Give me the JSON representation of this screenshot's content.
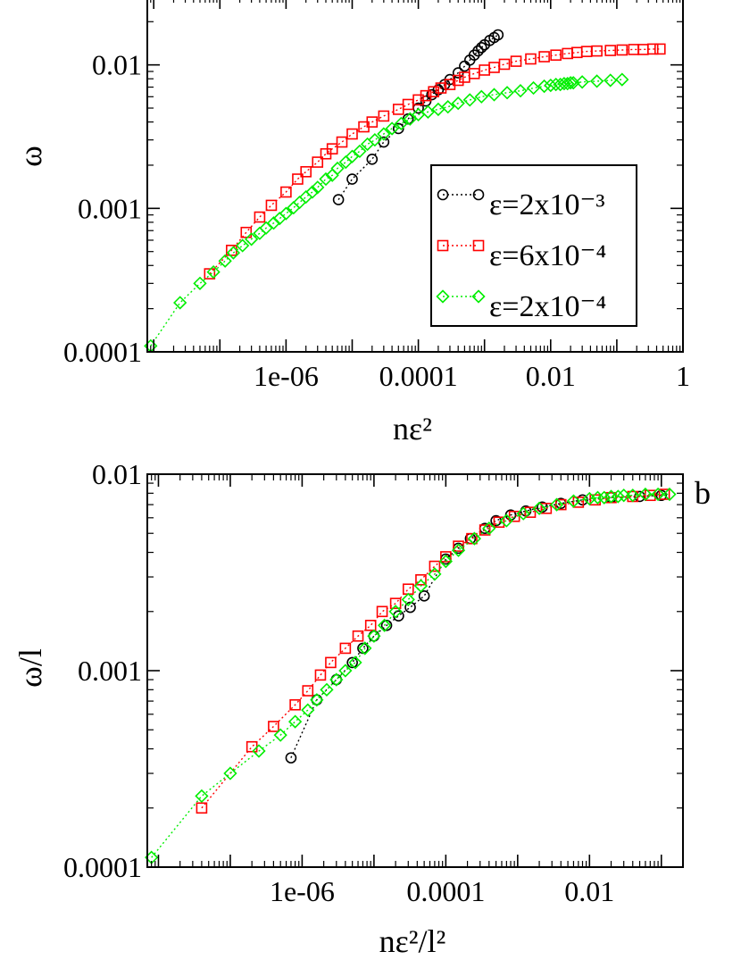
{
  "colors": {
    "black_series": "#000000",
    "red_series": "#ff0000",
    "green_series": "#00ee00",
    "axis": "#000000",
    "background": "#ffffff"
  },
  "chart_data": [
    {
      "type": "scatter",
      "panel_label": "",
      "xlabel": "nε²",
      "ylabel": "ω",
      "x_scale": "log",
      "y_scale": "log",
      "xlim": [
        8e-09,
        1.0
      ],
      "ylim": [
        0.0001,
        0.03
      ],
      "x_tick_labels": [
        "1e-06",
        "0.0001",
        "0.01",
        "1"
      ],
      "y_tick_labels": [
        "0.0001",
        "0.001",
        "0.01"
      ],
      "grid": false,
      "legend_position": "right",
      "series": [
        {
          "name": "ε=2x10⁻³",
          "marker": "circle",
          "color": "black",
          "x": [
            6.2e-06,
            1e-05,
            2e-05,
            3e-05,
            5e-05,
            7e-05,
            0.0001,
            0.00013,
            0.00016,
            0.0002,
            0.00025,
            0.0003,
            0.0004,
            0.0005,
            0.0006,
            0.0007,
            0.0008,
            0.0009,
            0.001,
            0.0012,
            0.0014,
            0.0016
          ],
          "y": [
            0.00115,
            0.0016,
            0.0022,
            0.0029,
            0.0036,
            0.0042,
            0.005,
            0.0056,
            0.0062,
            0.0067,
            0.0073,
            0.0079,
            0.0088,
            0.0098,
            0.0108,
            0.0117,
            0.0125,
            0.0132,
            0.0138,
            0.0148,
            0.0155,
            0.0162
          ]
        },
        {
          "name": "ε=6x10⁻⁴",
          "marker": "square",
          "color": "red",
          "x": [
            7e-08,
            1.5e-07,
            2.5e-07,
            4e-07,
            6e-07,
            1e-06,
            1.5e-06,
            2e-06,
            3e-06,
            4e-06,
            5e-06,
            7e-06,
            1e-05,
            1.5e-05,
            2e-05,
            3e-05,
            5e-05,
            7e-05,
            0.0001,
            0.00013,
            0.00017,
            0.00022,
            0.0003,
            0.0004,
            0.0005,
            0.0007,
            0.001,
            0.0014,
            0.002,
            0.003,
            0.005,
            0.008,
            0.012,
            0.018,
            0.025,
            0.035,
            0.05,
            0.08,
            0.12,
            0.18,
            0.25,
            0.35,
            0.45
          ],
          "y": [
            0.00035,
            0.00051,
            0.00068,
            0.00087,
            0.00105,
            0.0013,
            0.0016,
            0.0018,
            0.0021,
            0.0024,
            0.0026,
            0.0029,
            0.0033,
            0.0037,
            0.004,
            0.0044,
            0.0049,
            0.0053,
            0.0057,
            0.0061,
            0.0065,
            0.0069,
            0.0073,
            0.0078,
            0.0082,
            0.0087,
            0.0092,
            0.0096,
            0.0101,
            0.0106,
            0.011,
            0.0114,
            0.0117,
            0.012,
            0.0122,
            0.0124,
            0.0125,
            0.0126,
            0.0127,
            0.0128,
            0.0128,
            0.0129,
            0.0129
          ]
        },
        {
          "name": "ε=2x10⁻⁴",
          "marker": "diamond",
          "color": "green",
          "x": [
            9e-09,
            2.5e-08,
            5e-08,
            8e-08,
            1.2e-07,
            1.6e-07,
            2.2e-07,
            3e-07,
            4e-07,
            5e-07,
            6.5e-07,
            8e-07,
            1e-06,
            1.3e-06,
            1.6e-06,
            2e-06,
            2.5e-06,
            3e-06,
            4e-06,
            5e-06,
            6e-06,
            8e-06,
            1e-05,
            1.3e-05,
            1.7e-05,
            2.2e-05,
            3e-05,
            4e-05,
            5.5e-05,
            7.5e-05,
            0.0001,
            0.00014,
            0.0002,
            0.00028,
            0.0004,
            0.0006,
            0.0009,
            0.0014,
            0.0022,
            0.0035,
            0.0055,
            0.008,
            0.01,
            0.012,
            0.014,
            0.016,
            0.018,
            0.02,
            0.022,
            0.03,
            0.05,
            0.08,
            0.12
          ],
          "y": [
            0.00011,
            0.00022,
            0.0003,
            0.00036,
            0.00043,
            0.00049,
            0.00055,
            0.00061,
            0.00067,
            0.00073,
            0.00079,
            0.00085,
            0.00092,
            0.00101,
            0.0011,
            0.0012,
            0.0013,
            0.0014,
            0.0016,
            0.0017,
            0.0019,
            0.0021,
            0.0023,
            0.0025,
            0.0028,
            0.003,
            0.0033,
            0.0036,
            0.0039,
            0.0042,
            0.0045,
            0.0047,
            0.0049,
            0.0051,
            0.0054,
            0.0057,
            0.006,
            0.0062,
            0.0064,
            0.0066,
            0.0069,
            0.0071,
            0.0072,
            0.0073,
            0.0073,
            0.0074,
            0.0074,
            0.0075,
            0.0075,
            0.0076,
            0.0077,
            0.0078,
            0.0079
          ]
        }
      ]
    },
    {
      "type": "scatter",
      "panel_label": "b",
      "xlabel": "nε²/l²",
      "ylabel": "ω/l",
      "x_scale": "log",
      "y_scale": "log",
      "xlim": [
        7e-09,
        0.2
      ],
      "ylim": [
        0.0001,
        0.01
      ],
      "x_tick_labels": [
        "1e-06",
        "0.0001",
        "0.01"
      ],
      "y_tick_labels": [
        "0.0001",
        "0.001",
        "0.01"
      ],
      "grid": false,
      "legend_position": "none",
      "series": [
        {
          "name": "",
          "marker": "circle",
          "color": "black",
          "x": [
            7e-07,
            1.6e-06,
            3e-06,
            5e-06,
            7e-06,
            1e-05,
            1.5e-05,
            2.2e-05,
            3.2e-05,
            5e-05,
            0.0001,
            0.00015,
            0.00022,
            0.00035,
            0.0005,
            0.0008,
            0.0013,
            0.0022,
            0.004,
            0.008,
            0.02,
            0.05,
            0.1
          ],
          "y": [
            0.00036,
            0.00071,
            0.0009,
            0.0011,
            0.0013,
            0.0015,
            0.0017,
            0.0019,
            0.0021,
            0.0024,
            0.0037,
            0.0042,
            0.0047,
            0.0053,
            0.0058,
            0.0062,
            0.0065,
            0.0068,
            0.0071,
            0.0074,
            0.0076,
            0.0077,
            0.0078
          ]
        },
        {
          "name": "",
          "marker": "square",
          "color": "red",
          "x": [
            4e-08,
            2e-07,
            4e-07,
            8e-07,
            1.2e-06,
            1.8e-06,
            2.5e-06,
            4e-06,
            6e-06,
            9e-06,
            1.3e-05,
            2e-05,
            3e-05,
            4.5e-05,
            7e-05,
            0.0001,
            0.00015,
            0.00023,
            0.00035,
            0.00055,
            0.0009,
            0.0015,
            0.0025,
            0.004,
            0.007,
            0.012,
            0.02,
            0.04,
            0.07,
            0.11
          ],
          "y": [
            0.0002,
            0.00041,
            0.00052,
            0.00067,
            0.00079,
            0.00095,
            0.0011,
            0.0013,
            0.0015,
            0.0017,
            0.002,
            0.0022,
            0.0026,
            0.0029,
            0.0034,
            0.0038,
            0.0043,
            0.0047,
            0.0052,
            0.0057,
            0.0061,
            0.0064,
            0.0067,
            0.007,
            0.0072,
            0.0074,
            0.0076,
            0.0077,
            0.0078,
            0.0079
          ]
        },
        {
          "name": "",
          "marker": "diamond",
          "color": "green",
          "x": [
            8e-09,
            4e-08,
            1e-07,
            2.5e-07,
            5e-07,
            8e-07,
            1.2e-06,
            1.6e-06,
            2.2e-06,
            3e-06,
            4e-06,
            5.5e-06,
            7.5e-06,
            1e-05,
            1.4e-05,
            2e-05,
            3e-05,
            4.5e-05,
            7e-05,
            0.0001,
            0.00015,
            0.00025,
            0.0004,
            0.0007,
            0.0012,
            0.002,
            0.0035,
            0.006,
            0.01,
            0.013,
            0.016,
            0.02,
            0.025,
            0.03,
            0.04,
            0.06,
            0.09,
            0.13
          ],
          "y": [
            0.000112,
            0.00023,
            0.0003,
            0.00039,
            0.00047,
            0.00055,
            0.00063,
            0.00071,
            0.0008,
            0.0009,
            0.001,
            0.0011,
            0.0013,
            0.0015,
            0.0017,
            0.002,
            0.0023,
            0.0027,
            0.0031,
            0.0036,
            0.0041,
            0.0047,
            0.0053,
            0.0058,
            0.0063,
            0.0067,
            0.007,
            0.0073,
            0.0075,
            0.0076,
            0.0076,
            0.0077,
            0.0077,
            0.0078,
            0.0078,
            0.0079,
            0.0079,
            0.0079
          ]
        }
      ]
    }
  ]
}
